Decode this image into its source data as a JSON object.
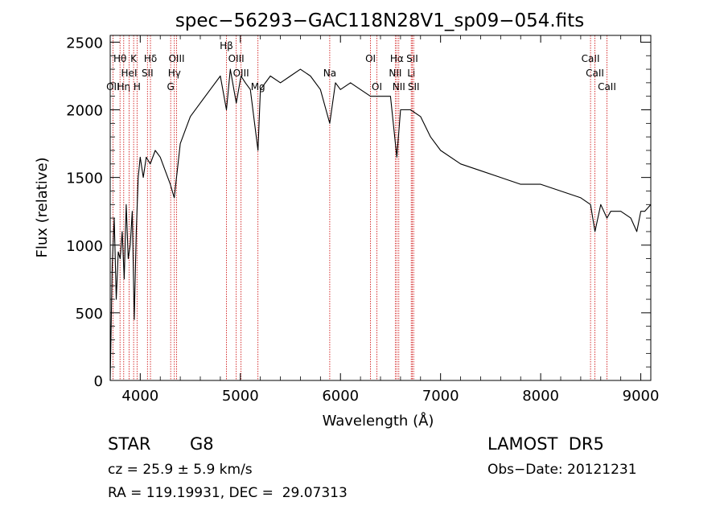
{
  "chart_data": {
    "type": "line",
    "title": "spec−56293−GAC118N28V1_sp09−054.fits",
    "xlabel": "Wavelength (Å)",
    "ylabel": "Flux (relative)",
    "xlim": [
      3700,
      9100
    ],
    "ylim": [
      0,
      2550
    ],
    "xticks": [
      4000,
      5000,
      6000,
      7000,
      8000,
      9000
    ],
    "yticks": [
      0,
      500,
      1000,
      1500,
      2000,
      2500
    ],
    "line_color": "#000000",
    "marker_color": "#cc0000",
    "grid": false,
    "series": [
      {
        "x": [
          3700,
          3720,
          3740,
          3760,
          3780,
          3800,
          3820,
          3840,
          3860,
          3880,
          3900,
          3920,
          3940,
          3960,
          3980,
          4000,
          4030,
          4060,
          4100,
          4150,
          4200,
          4250,
          4300,
          4340,
          4400,
          4450,
          4500,
          4600,
          4700,
          4800,
          4861,
          4900,
          4959,
          5007,
          5050,
          5100,
          5176,
          5200,
          5300,
          5400,
          5500,
          5600,
          5700,
          5800,
          5893,
          5950,
          6000,
          6100,
          6200,
          6300,
          6400,
          6500,
          6563,
          6600,
          6700,
          6800,
          6900,
          7000,
          7200,
          7400,
          7600,
          7800,
          8000,
          8200,
          8400,
          8498,
          8542,
          8600,
          8662,
          8700,
          8800,
          8900,
          8960,
          9000,
          9040,
          9100
        ],
        "y": [
          0,
          850,
          1200,
          600,
          950,
          900,
          1100,
          750,
          1300,
          900,
          1000,
          1250,
          450,
          1100,
          1500,
          1650,
          1500,
          1650,
          1600,
          1700,
          1650,
          1550,
          1450,
          1350,
          1750,
          1850,
          1950,
          2050,
          2150,
          2250,
          2000,
          2300,
          2050,
          2250,
          2200,
          2150,
          1700,
          2150,
          2250,
          2200,
          2250,
          2300,
          2250,
          2150,
          1900,
          2200,
          2150,
          2200,
          2150,
          2100,
          2100,
          2100,
          1650,
          2000,
          2000,
          1950,
          1800,
          1700,
          1600,
          1550,
          1500,
          1450,
          1450,
          1400,
          1350,
          1300,
          1100,
          1300,
          1200,
          1250,
          1250,
          1200,
          1100,
          1250,
          1250,
          1300
        ]
      }
    ],
    "lines": [
      {
        "wl": 3727,
        "label": "OII",
        "row": 3
      },
      {
        "wl": 3798,
        "label": "Hθ",
        "row": 1
      },
      {
        "wl": 3835,
        "label": "Hη",
        "row": 3
      },
      {
        "wl": 3889,
        "label": "HeI",
        "row": 2
      },
      {
        "wl": 3934,
        "label": "K",
        "row": 1
      },
      {
        "wl": 3968,
        "label": "H",
        "row": 3
      },
      {
        "wl": 4072,
        "label": "SII",
        "row": 2
      },
      {
        "wl": 4102,
        "label": "Hδ",
        "row": 1
      },
      {
        "wl": 4304,
        "label": "G",
        "row": 3
      },
      {
        "wl": 4341,
        "label": "Hγ",
        "row": 2
      },
      {
        "wl": 4363,
        "label": "OIII",
        "row": 1
      },
      {
        "wl": 4861,
        "label": "Hβ",
        "row": 0
      },
      {
        "wl": 4959,
        "label": "OIII",
        "row": 1
      },
      {
        "wl": 5007,
        "label": "OIII",
        "row": 2
      },
      {
        "wl": 5176,
        "label": "Mg",
        "row": 3
      },
      {
        "wl": 5893,
        "label": "Na",
        "row": 2
      },
      {
        "wl": 6300,
        "label": "OI",
        "row": 1
      },
      {
        "wl": 6364,
        "label": "OI",
        "row": 3
      },
      {
        "wl": 6548,
        "label": "NII",
        "row": 2
      },
      {
        "wl": 6563,
        "label": "Hα",
        "row": 1
      },
      {
        "wl": 6583,
        "label": "NII",
        "row": 3
      },
      {
        "wl": 6707,
        "label": "Li",
        "row": 2
      },
      {
        "wl": 6717,
        "label": "SII",
        "row": 1
      },
      {
        "wl": 6731,
        "label": "SII",
        "row": 3
      },
      {
        "wl": 8498,
        "label": "CaII",
        "row": 1
      },
      {
        "wl": 8542,
        "label": "CaII",
        "row": 2
      },
      {
        "wl": 8662,
        "label": "CaII",
        "row": 3
      }
    ]
  },
  "info": {
    "object_class": "STAR",
    "subclass": "G8",
    "survey": "LAMOST  DR5",
    "redshift": "cz = 25.9 ± 5.9 km/s",
    "obs_date": "Obs−Date: 20121231",
    "coords": "RA = 119.19931, DEC =  29.07313"
  }
}
